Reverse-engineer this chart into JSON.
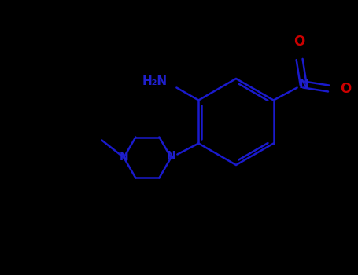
{
  "background_color": "#000000",
  "bond_color": "#1a1acc",
  "n_color": "#2020cc",
  "o_color": "#cc0000",
  "lw": 1.8,
  "figsize": [
    4.55,
    3.5
  ],
  "dpi": 100,
  "xlim": [
    0,
    455
  ],
  "ylim": [
    0,
    350
  ]
}
